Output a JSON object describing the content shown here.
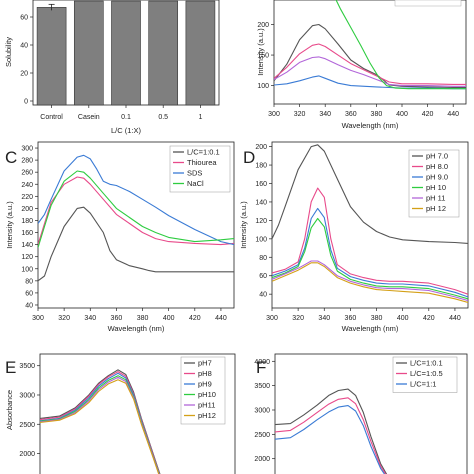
{
  "chart_data": [
    {
      "id": "A",
      "type": "bar",
      "panel_letter": "",
      "xlabel": "L/C (1:X)",
      "ylabel": "Solubility",
      "categories": [
        "Control",
        "Casein",
        "0.1",
        "0.5",
        "1"
      ],
      "values": [
        0.93,
        0.99,
        0.99,
        0.99,
        0.99
      ],
      "ylim": [
        0,
        1.0
      ],
      "yticks": [
        "0",
        "20",
        "40",
        "60"
      ],
      "bar_color": "#7f7f7f"
    },
    {
      "id": "B",
      "type": "line",
      "panel_letter": "",
      "xlabel": "Wavelength (nm)",
      "ylabel": "Intensity (a.u.)",
      "xlim": [
        300,
        450
      ],
      "ylim": [
        70,
        240
      ],
      "xticks": [
        "300",
        "320",
        "340",
        "360",
        "380",
        "400",
        "420",
        "440"
      ],
      "yticks": [
        "100",
        "150",
        "200"
      ],
      "series": [
        {
          "color": "#555555",
          "x": [
            300,
            310,
            320,
            330,
            335,
            340,
            350,
            360,
            370,
            380,
            385,
            390,
            400,
            420,
            440,
            450
          ],
          "y": [
            108,
            135,
            175,
            198,
            200,
            193,
            168,
            142,
            128,
            118,
            110,
            101,
            99,
            98,
            97,
            97
          ]
        },
        {
          "color": "#e84a8a",
          "x": [
            300,
            310,
            320,
            330,
            335,
            340,
            350,
            360,
            370,
            380,
            390,
            400,
            420,
            440,
            450
          ],
          "y": [
            112,
            130,
            152,
            166,
            168,
            164,
            150,
            136,
            126,
            116,
            106,
            103,
            103,
            102,
            102
          ]
        },
        {
          "color": "#b266d9",
          "x": [
            300,
            310,
            320,
            330,
            335,
            340,
            350,
            360,
            370,
            380,
            390,
            400,
            420,
            440,
            450
          ],
          "y": [
            110,
            122,
            138,
            146,
            147,
            144,
            134,
            125,
            118,
            110,
            102,
            100,
            100,
            99,
            99
          ]
        },
        {
          "color": "#3a7bd5",
          "x": [
            300,
            310,
            320,
            330,
            335,
            340,
            350,
            360,
            380,
            400,
            420,
            440,
            450
          ],
          "y": [
            101,
            103,
            108,
            114,
            116,
            112,
            104,
            100,
            98,
            96,
            96,
            95,
            95
          ]
        },
        {
          "color": "#2ecc40",
          "x": [
            345,
            352,
            360,
            368,
            375,
            382,
            388,
            395,
            405,
            420,
            440,
            450
          ],
          "y": [
            255,
            225,
            195,
            165,
            137,
            113,
            100,
            96,
            95,
            95,
            95,
            95
          ]
        }
      ]
    },
    {
      "id": "C",
      "type": "line",
      "panel_letter": "C",
      "xlabel": "Wavelength (nm)",
      "ylabel": "Intensity (a.u.)",
      "xlim": [
        300,
        450
      ],
      "ylim": [
        35,
        310
      ],
      "xticks": [
        "300",
        "320",
        "340",
        "360",
        "380",
        "400",
        "420",
        "440"
      ],
      "yticks": [
        "40",
        "60",
        "80",
        "100",
        "120",
        "140",
        "160",
        "180",
        "200",
        "220",
        "240",
        "260",
        "280",
        "300"
      ],
      "legend": [
        "L/C=1:0.1",
        "Thiourea",
        "SDS",
        "NaCl"
      ],
      "series": [
        {
          "name": "L/C=1:0.1",
          "color": "#555555",
          "x": [
            300,
            305,
            310,
            320,
            330,
            335,
            340,
            350,
            355,
            360,
            370,
            380,
            385,
            390,
            400,
            420,
            440,
            450
          ],
          "y": [
            80,
            88,
            120,
            170,
            200,
            202,
            192,
            160,
            130,
            115,
            105,
            100,
            97,
            95,
            95,
            95,
            95,
            95
          ]
        },
        {
          "name": "Thiourea",
          "color": "#e84a8a",
          "x": [
            300,
            305,
            310,
            320,
            330,
            335,
            340,
            350,
            360,
            370,
            380,
            390,
            400,
            420,
            440,
            450
          ],
          "y": [
            140,
            175,
            210,
            240,
            252,
            250,
            240,
            215,
            190,
            175,
            160,
            150,
            145,
            142,
            140,
            142
          ]
        },
        {
          "name": "SDS",
          "color": "#3a7bd5",
          "x": [
            300,
            305,
            310,
            320,
            330,
            335,
            340,
            345,
            350,
            355,
            360,
            370,
            380,
            390,
            400,
            420,
            440,
            450
          ],
          "y": [
            175,
            190,
            215,
            262,
            285,
            288,
            282,
            265,
            245,
            240,
            238,
            228,
            215,
            202,
            188,
            165,
            145,
            140
          ]
        },
        {
          "name": "NaCl",
          "color": "#2ecc40",
          "x": [
            300,
            305,
            310,
            320,
            330,
            335,
            340,
            350,
            360,
            370,
            380,
            390,
            400,
            420,
            440,
            450
          ],
          "y": [
            135,
            170,
            205,
            245,
            262,
            260,
            250,
            225,
            200,
            185,
            170,
            160,
            152,
            145,
            148,
            150
          ]
        }
      ]
    },
    {
      "id": "D",
      "type": "line",
      "panel_letter": "D",
      "xlabel": "Wavelength (nm)",
      "ylabel": "Intensity (a.u.)",
      "xlim": [
        300,
        450
      ],
      "ylim": [
        25,
        205
      ],
      "xticks": [
        "300",
        "320",
        "340",
        "360",
        "380",
        "400",
        "420",
        "440"
      ],
      "yticks": [
        "40",
        "60",
        "80",
        "100",
        "120",
        "140",
        "160",
        "180",
        "200"
      ],
      "legend": [
        "pH 7.0",
        "pH 8.0",
        "pH 9.0",
        "pH 10",
        "pH 11",
        "pH 12"
      ],
      "series": [
        {
          "name": "pH 7.0",
          "color": "#555555",
          "x": [
            300,
            305,
            310,
            320,
            330,
            335,
            340,
            350,
            360,
            370,
            380,
            390,
            400,
            420,
            440,
            450
          ],
          "y": [
            100,
            115,
            135,
            175,
            200,
            202,
            195,
            165,
            135,
            118,
            108,
            102,
            99,
            97,
            96,
            95
          ]
        },
        {
          "name": "pH 8.0",
          "color": "#e84a8a",
          "x": [
            300,
            310,
            320,
            325,
            330,
            335,
            340,
            345,
            350,
            360,
            370,
            380,
            390,
            400,
            420,
            440,
            450
          ],
          "y": [
            63,
            67,
            75,
            100,
            140,
            155,
            145,
            100,
            72,
            62,
            58,
            55,
            54,
            54,
            52,
            45,
            40
          ]
        },
        {
          "name": "pH 9.0",
          "color": "#3a7bd5",
          "x": [
            300,
            310,
            320,
            325,
            330,
            335,
            340,
            345,
            350,
            360,
            370,
            380,
            390,
            400,
            420,
            440,
            450
          ],
          "y": [
            60,
            65,
            72,
            90,
            122,
            133,
            123,
            88,
            68,
            59,
            55,
            52,
            51,
            51,
            49,
            42,
            37
          ]
        },
        {
          "name": "pH 10",
          "color": "#2ecc40",
          "x": [
            300,
            310,
            320,
            325,
            330,
            335,
            340,
            345,
            350,
            360,
            370,
            380,
            390,
            400,
            420,
            440,
            450
          ],
          "y": [
            58,
            63,
            70,
            86,
            112,
            122,
            113,
            82,
            65,
            56,
            52,
            49,
            48,
            48,
            46,
            39,
            35
          ]
        },
        {
          "name": "pH 11",
          "color": "#b266d9",
          "x": [
            300,
            310,
            320,
            325,
            330,
            335,
            340,
            345,
            350,
            360,
            370,
            380,
            390,
            400,
            420,
            440,
            450
          ],
          "y": [
            56,
            62,
            68,
            72,
            76,
            76,
            72,
            66,
            60,
            54,
            50,
            47,
            46,
            46,
            44,
            37,
            33
          ]
        },
        {
          "name": "pH 12",
          "color": "#d4a017",
          "x": [
            300,
            310,
            320,
            325,
            330,
            335,
            340,
            345,
            350,
            360,
            370,
            380,
            390,
            400,
            420,
            440,
            450
          ],
          "y": [
            54,
            60,
            66,
            70,
            74,
            74,
            70,
            64,
            58,
            52,
            48,
            45,
            44,
            43,
            41,
            35,
            31
          ]
        }
      ]
    },
    {
      "id": "E",
      "type": "line",
      "panel_letter": "E",
      "ylabel": "Absorbance",
      "xlim": [
        0,
        100
      ],
      "ylim": [
        1480,
        3700
      ],
      "yticks": [
        "1500",
        "2000",
        "2500",
        "3000",
        "3500"
      ],
      "legend": [
        "pH7",
        "pH8",
        "pH9",
        "pH10",
        "pH11",
        "pH12"
      ],
      "series": [
        {
          "name": "pH7",
          "color": "#555555",
          "x": [
            0,
            10,
            18,
            25,
            30,
            35,
            40,
            44,
            48,
            52,
            58,
            62,
            64
          ],
          "y": [
            2600,
            2640,
            2780,
            3000,
            3200,
            3330,
            3430,
            3350,
            3050,
            2600,
            2000,
            1600,
            1480
          ]
        },
        {
          "name": "pH8",
          "color": "#e84a8a",
          "x": [
            0,
            10,
            18,
            25,
            30,
            35,
            40,
            44,
            48,
            52,
            58,
            62,
            64
          ],
          "y": [
            2580,
            2620,
            2760,
            2980,
            3180,
            3310,
            3400,
            3320,
            3020,
            2580,
            1980,
            1580,
            1480
          ]
        },
        {
          "name": "pH9",
          "color": "#3a7bd5",
          "x": [
            0,
            10,
            18,
            25,
            30,
            35,
            40,
            44,
            48,
            52,
            58,
            62,
            64
          ],
          "y": [
            2560,
            2600,
            2740,
            2950,
            3150,
            3280,
            3370,
            3290,
            3000,
            2560,
            1960,
            1570,
            1480
          ]
        },
        {
          "name": "pH10",
          "color": "#2ecc40",
          "x": [
            0,
            10,
            18,
            25,
            30,
            35,
            40,
            44,
            48,
            52,
            58,
            62,
            64
          ],
          "y": [
            2550,
            2590,
            2720,
            2920,
            3120,
            3250,
            3330,
            3260,
            2970,
            2540,
            1950,
            1560,
            1480
          ]
        },
        {
          "name": "pH11",
          "color": "#b266d9",
          "x": [
            0,
            10,
            18,
            25,
            30,
            35,
            40,
            44,
            48,
            52,
            58,
            62,
            64
          ],
          "y": [
            2540,
            2580,
            2700,
            2900,
            3090,
            3220,
            3300,
            3230,
            2950,
            2520,
            1940,
            1550,
            1480
          ]
        },
        {
          "name": "pH12",
          "color": "#d4a017",
          "x": [
            0,
            10,
            18,
            25,
            30,
            35,
            40,
            44,
            48,
            52,
            58,
            62,
            64
          ],
          "y": [
            2530,
            2570,
            2680,
            2870,
            3060,
            3190,
            3260,
            3200,
            2930,
            2500,
            1930,
            1540,
            1480
          ]
        }
      ]
    },
    {
      "id": "F",
      "type": "line",
      "panel_letter": "F",
      "xlim": [
        0,
        100
      ],
      "ylim": [
        1480,
        4150
      ],
      "yticks": [
        "1500",
        "2000",
        "2500",
        "3000",
        "3500",
        "4000"
      ],
      "legend": [
        "L/C=1:0.1",
        "L/C=1:0.5",
        "L/C=1:1"
      ],
      "series": [
        {
          "name": "L/C=1:0.1",
          "color": "#555555",
          "x": [
            0,
            8,
            15,
            22,
            28,
            33,
            38,
            42,
            46,
            50,
            55,
            60,
            63
          ],
          "y": [
            2700,
            2720,
            2900,
            3100,
            3300,
            3400,
            3430,
            3300,
            2950,
            2450,
            1900,
            1550,
            1480
          ]
        },
        {
          "name": "L/C=1:0.5",
          "color": "#e84a8a",
          "x": [
            0,
            8,
            15,
            22,
            28,
            33,
            38,
            42,
            46,
            50,
            55,
            60,
            63
          ],
          "y": [
            2550,
            2580,
            2750,
            2950,
            3120,
            3220,
            3250,
            3130,
            2800,
            2350,
            1850,
            1530,
            1480
          ]
        },
        {
          "name": "L/C=1:1",
          "color": "#3a7bd5",
          "x": [
            0,
            8,
            15,
            22,
            28,
            33,
            38,
            42,
            46,
            50,
            55,
            60,
            63
          ],
          "y": [
            2400,
            2430,
            2600,
            2800,
            2960,
            3060,
            3090,
            2980,
            2680,
            2250,
            1800,
            1510,
            1480
          ]
        }
      ]
    }
  ]
}
